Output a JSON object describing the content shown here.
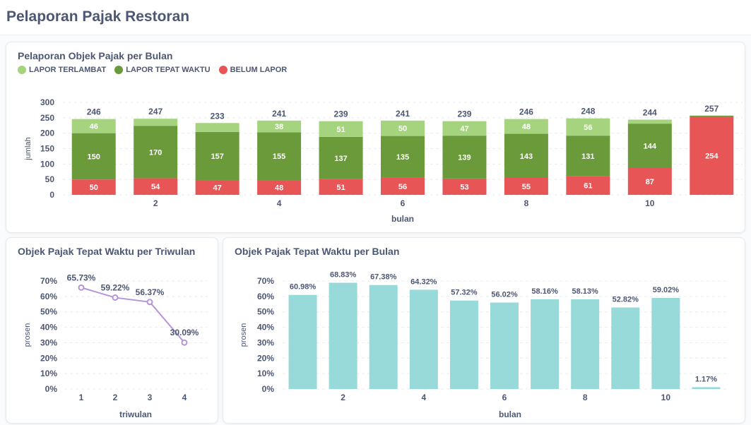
{
  "page": {
    "title": "Pelaporan Pajak Restoran"
  },
  "colors": {
    "terlambat": "#a6d47e",
    "tepat": "#6a9a3a",
    "belum": "#e85557",
    "teal": "#98d9d9",
    "purple": "#b594d8"
  },
  "chart_monthly_status": {
    "title": "Pelaporan Objek Pajak per Bulan",
    "legend": [
      "LAPOR TERLAMBAT",
      "LAPOR TEPAT WAKTU",
      "BELUM LAPOR"
    ]
  },
  "chart_data": [
    {
      "type": "bar",
      "stacked": true,
      "title": "Pelaporan Objek Pajak per Bulan",
      "xlabel": "bulan",
      "ylabel": "jumlah",
      "x": [
        1,
        2,
        3,
        4,
        5,
        6,
        7,
        8,
        9,
        10,
        11
      ],
      "xticks": [
        "2",
        "4",
        "6",
        "8",
        "10"
      ],
      "yticks": [
        "0",
        "50",
        "100",
        "150",
        "200",
        "250",
        "300"
      ],
      "ylim": [
        0,
        300
      ],
      "legend_position": "top-left",
      "grid": true,
      "series": [
        {
          "name": "BELUM LAPOR",
          "values": [
            50,
            54,
            47,
            48,
            51,
            56,
            53,
            55,
            61,
            87,
            254
          ]
        },
        {
          "name": "LAPOR TEPAT WAKTU",
          "values": [
            150,
            170,
            157,
            155,
            137,
            135,
            139,
            143,
            131,
            144,
            3
          ]
        },
        {
          "name": "LAPOR TERLAMBAT",
          "values": [
            46,
            23,
            29,
            38,
            51,
            50,
            47,
            48,
            56,
            13,
            0
          ]
        }
      ],
      "segment_labels": [
        {
          "belum": "50",
          "tepat": "150",
          "terlambat": "46"
        },
        {
          "belum": "54",
          "tepat": "170",
          "terlambat": ""
        },
        {
          "belum": "47",
          "tepat": "157",
          "terlambat": ""
        },
        {
          "belum": "48",
          "tepat": "155",
          "terlambat": "38"
        },
        {
          "belum": "51",
          "tepat": "137",
          "terlambat": "51"
        },
        {
          "belum": "56",
          "tepat": "135",
          "terlambat": "50"
        },
        {
          "belum": "53",
          "tepat": "139",
          "terlambat": "47"
        },
        {
          "belum": "55",
          "tepat": "143",
          "terlambat": "48"
        },
        {
          "belum": "61",
          "tepat": "131",
          "terlambat": "56"
        },
        {
          "belum": "87",
          "tepat": "144",
          "terlambat": ""
        },
        {
          "belum": "254",
          "tepat": "",
          "terlambat": ""
        }
      ],
      "totals": [
        "246",
        "247",
        "233",
        "241",
        "239",
        "241",
        "239",
        "246",
        "248",
        "244",
        "257"
      ]
    },
    {
      "type": "line",
      "title": "Objek Pajak Tepat Waktu per Triwulan",
      "xlabel": "triwulan",
      "ylabel": "prosen",
      "x": [
        "1",
        "2",
        "3",
        "4"
      ],
      "values": [
        65.73,
        59.22,
        56.37,
        30.09
      ],
      "labels": [
        "65.73%",
        "59.22%",
        "56.37%",
        "30.09%"
      ],
      "yticks": [
        "0%",
        "10%",
        "20%",
        "30%",
        "40%",
        "50%",
        "60%",
        "70%"
      ],
      "ylim": [
        0,
        70
      ],
      "grid": true
    },
    {
      "type": "bar",
      "title": "Objek Pajak Tepat Waktu per Bulan",
      "xlabel": "bulan",
      "ylabel": "prosen",
      "x": [
        1,
        2,
        3,
        4,
        5,
        6,
        7,
        8,
        9,
        10,
        11
      ],
      "xticks": [
        "2",
        "4",
        "6",
        "8",
        "10"
      ],
      "values": [
        60.98,
        68.83,
        67.38,
        64.32,
        57.32,
        56.02,
        58.16,
        58.13,
        52.82,
        59.02,
        1.17
      ],
      "labels": [
        "60.98%",
        "68.83%",
        "67.38%",
        "64.32%",
        "57.32%",
        "56.02%",
        "58.16%",
        "58.13%",
        "52.82%",
        "59.02%",
        "1.17%"
      ],
      "yticks": [
        "0%",
        "10%",
        "20%",
        "30%",
        "40%",
        "50%",
        "60%",
        "70%"
      ],
      "ylim": [
        0,
        70
      ],
      "grid": true
    }
  ]
}
